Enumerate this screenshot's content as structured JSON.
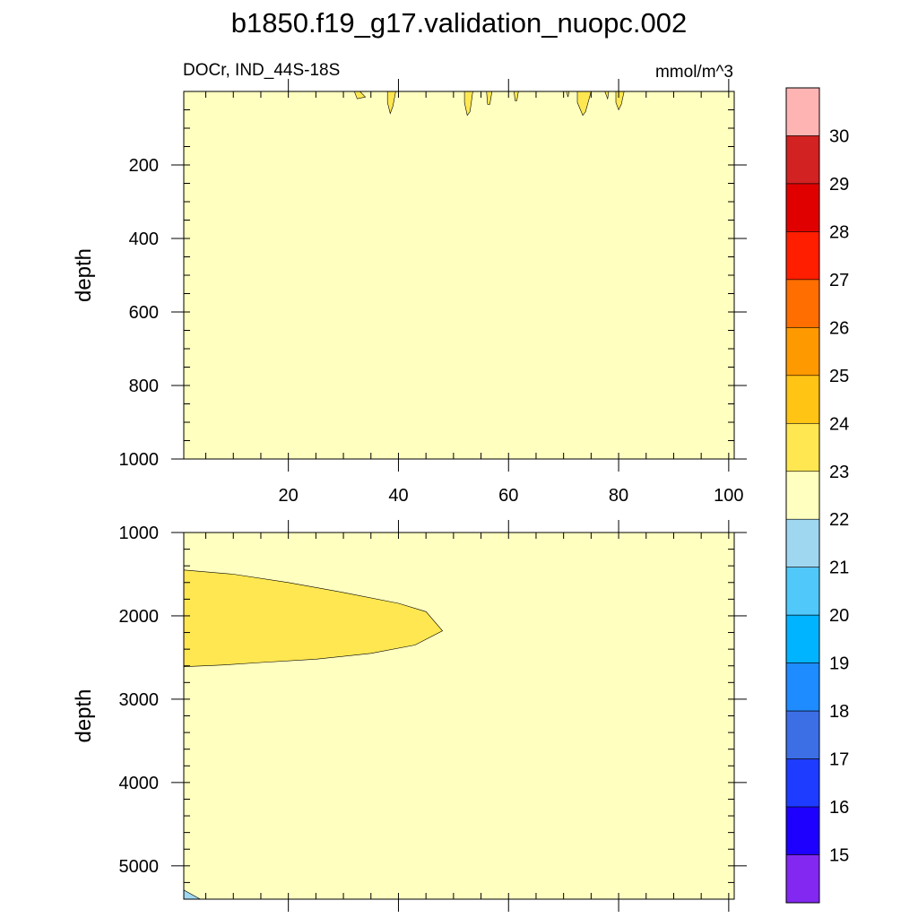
{
  "title": "b1850.f19_g17.validation_nuopc.002",
  "chart_data": {
    "type": "heatmap",
    "variable_label": "DOCr, IND_44S-18S",
    "units_label": "mmol/m^3",
    "background_color": "#ffffc0",
    "x_axis": {
      "range": [
        1,
        101
      ],
      "ticks": [
        20,
        40,
        60,
        80,
        100
      ],
      "minor_step": 5
    },
    "panels": [
      {
        "ylabel": "depth",
        "ylim": [
          0,
          1000
        ],
        "y_ticks": [
          200,
          400,
          600,
          800,
          1000
        ],
        "y_minor_step": 50,
        "x_tick_labels_shown": true,
        "regions": [
          {
            "level": "23-24",
            "color": "#ffe751",
            "points": [
              [
                33,
                0
              ],
              [
                34,
                15
              ],
              [
                32.5,
                20
              ],
              [
                32,
                0
              ]
            ]
          },
          {
            "level": "23-24",
            "color": "#ffe751",
            "points": [
              [
                38,
                0
              ],
              [
                39.5,
                0
              ],
              [
                39,
                40
              ],
              [
                38.5,
                60
              ],
              [
                38,
                30
              ]
            ]
          },
          {
            "level": "23-24",
            "color": "#ffe751",
            "points": [
              [
                52,
                0
              ],
              [
                53.5,
                0
              ],
              [
                53,
                55
              ],
              [
                52.5,
                65
              ],
              [
                52,
                30
              ]
            ]
          },
          {
            "level": "23-24",
            "color": "#ffe751",
            "points": [
              [
                56,
                0
              ],
              [
                57,
                0
              ],
              [
                56.6,
                35
              ],
              [
                56.2,
                35
              ]
            ]
          },
          {
            "level": "23-24",
            "color": "#ffe751",
            "points": [
              [
                61,
                0
              ],
              [
                61.8,
                0
              ],
              [
                61.5,
                25
              ],
              [
                61.2,
                25
              ]
            ]
          },
          {
            "level": "23-24",
            "color": "#ffe751",
            "points": [
              [
                70.5,
                0
              ],
              [
                71,
                0
              ],
              [
                70.8,
                15
              ]
            ]
          },
          {
            "level": "23-24",
            "color": "#ffe751",
            "points": [
              [
                72.5,
                0
              ],
              [
                75,
                0
              ],
              [
                74,
                55
              ],
              [
                73.5,
                65
              ],
              [
                72.5,
                30
              ]
            ]
          },
          {
            "level": "23-24",
            "color": "#ffe751",
            "points": [
              [
                77.5,
                0
              ],
              [
                78.2,
                0
              ],
              [
                78,
                20
              ]
            ]
          },
          {
            "level": "23-24",
            "color": "#ffe751",
            "points": [
              [
                79.5,
                0
              ],
              [
                81,
                0
              ],
              [
                80.5,
                35
              ],
              [
                80,
                50
              ],
              [
                79.5,
                30
              ]
            ]
          }
        ]
      },
      {
        "ylabel": "depth",
        "ylim": [
          1000,
          5400
        ],
        "y_ticks": [
          1000,
          2000,
          3000,
          4000,
          5000
        ],
        "y_minor_step": 200,
        "x_tick_labels_shown": false,
        "regions": [
          {
            "level": "23-24",
            "color": "#ffe751",
            "points": [
              [
                1,
                1450
              ],
              [
                10,
                1500
              ],
              [
                20,
                1600
              ],
              [
                30,
                1720
              ],
              [
                40,
                1850
              ],
              [
                45,
                1950
              ],
              [
                48,
                2180
              ],
              [
                43,
                2350
              ],
              [
                35,
                2450
              ],
              [
                25,
                2520
              ],
              [
                15,
                2560
              ],
              [
                8,
                2590
              ],
              [
                1,
                2610
              ]
            ]
          },
          {
            "level": "21-22",
            "color": "#a0d7f0",
            "points": [
              [
                1,
                5290
              ],
              [
                4,
                5400
              ],
              [
                1,
                5400
              ]
            ]
          }
        ]
      }
    ],
    "colorbar": {
      "levels": [
        "15",
        "16",
        "17",
        "18",
        "19",
        "20",
        "21",
        "22",
        "23",
        "24",
        "25",
        "26",
        "27",
        "28",
        "29",
        "30"
      ],
      "colors": [
        "#8228f0",
        "#1e00ff",
        "#1e3cff",
        "#3c6ee6",
        "#1e8cff",
        "#00b4ff",
        "#50c8fa",
        "#a0d7f0",
        "#ffffc0",
        "#ffe751",
        "#ffc414",
        "#ff9900",
        "#ff6e00",
        "#ff1e00",
        "#e10000",
        "#d22222",
        "#ffb4b4"
      ]
    }
  }
}
